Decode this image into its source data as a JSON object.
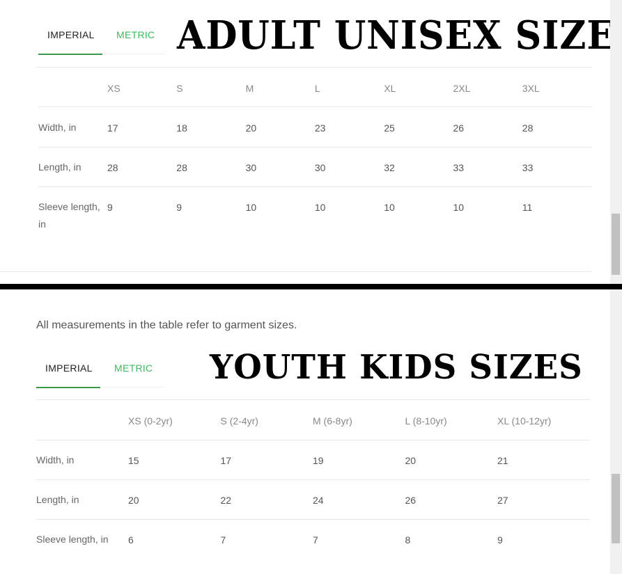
{
  "adult": {
    "title": "ADULT UNISEX SIZES",
    "tabs": [
      "IMPERIAL",
      "METRIC"
    ],
    "active_tab": "IMPERIAL",
    "columns": [
      "XS",
      "S",
      "M",
      "L",
      "XL",
      "2XL",
      "3XL"
    ],
    "rows": [
      {
        "label": "Width, in",
        "values": [
          "17",
          "18",
          "20",
          "23",
          "25",
          "26",
          "28"
        ]
      },
      {
        "label": "Length, in",
        "values": [
          "28",
          "28",
          "30",
          "30",
          "32",
          "33",
          "33"
        ]
      },
      {
        "label": "Sleeve length, in",
        "values": [
          "9",
          "9",
          "10",
          "10",
          "10",
          "10",
          "11"
        ]
      }
    ]
  },
  "youth": {
    "note": "All measurements in the table refer to garment sizes.",
    "title": "YOUTH KIDS SIZES",
    "tabs": [
      "IMPERIAL",
      "METRIC"
    ],
    "active_tab": "IMPERIAL",
    "columns": [
      "XS (0-2yr)",
      "S (2-4yr)",
      "M (6-8yr)",
      "L (8-10yr)",
      "XL (10-12yr)"
    ],
    "rows": [
      {
        "label": "Width, in",
        "values": [
          "15",
          "17",
          "19",
          "20",
          "21"
        ]
      },
      {
        "label": "Length, in",
        "values": [
          "20",
          "22",
          "24",
          "26",
          "27"
        ]
      },
      {
        "label": "Sleeve length, in",
        "values": [
          "6",
          "7",
          "7",
          "8",
          "9"
        ]
      }
    ]
  },
  "colors": {
    "accent": "#3dba5f",
    "underline": "#3a9a4a",
    "separator": "#000000"
  }
}
